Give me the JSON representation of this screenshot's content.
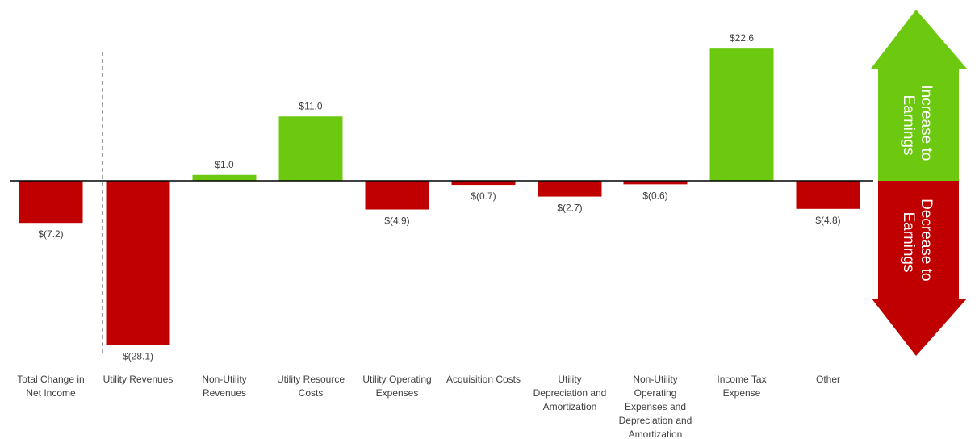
{
  "chart_data": {
    "type": "bar",
    "categories": [
      [
        "Total Change in",
        "Net Income"
      ],
      [
        "Utility Revenues"
      ],
      [
        "Non-Utility",
        "Revenues"
      ],
      [
        "Utility Resource",
        "Costs"
      ],
      [
        "Utility Operating",
        "Expenses"
      ],
      [
        "Acquisition Costs"
      ],
      [
        "Utility",
        "Depreciation and",
        "Amortization"
      ],
      [
        "Non-Utility",
        "Operating",
        "Expenses and",
        "Depreciation and",
        "Amortization"
      ],
      [
        "Income Tax",
        "Expense"
      ],
      [
        "Other"
      ]
    ],
    "values": [
      -7.2,
      -28.1,
      1.0,
      11.0,
      -4.9,
      -0.7,
      -2.7,
      -0.6,
      22.6,
      -4.8
    ],
    "value_labels": [
      "$(7.2)",
      "$(28.1)",
      "$1.0",
      "$11.0",
      "$(4.9)",
      "$(0.7)",
      "$(2.7)",
      "$(0.6)",
      "$22.6",
      "$(4.8)"
    ],
    "ylim": [
      -30,
      30
    ],
    "grid": false,
    "colors": {
      "positive": "#6cc90f",
      "negative": "#c00000"
    }
  },
  "arrows": {
    "increase": {
      "lines": [
        "Increase to",
        "Earnings"
      ],
      "color": "#6cc90f"
    },
    "decrease": {
      "lines": [
        "Decrease to",
        "Earnings"
      ],
      "color": "#c00000"
    }
  }
}
